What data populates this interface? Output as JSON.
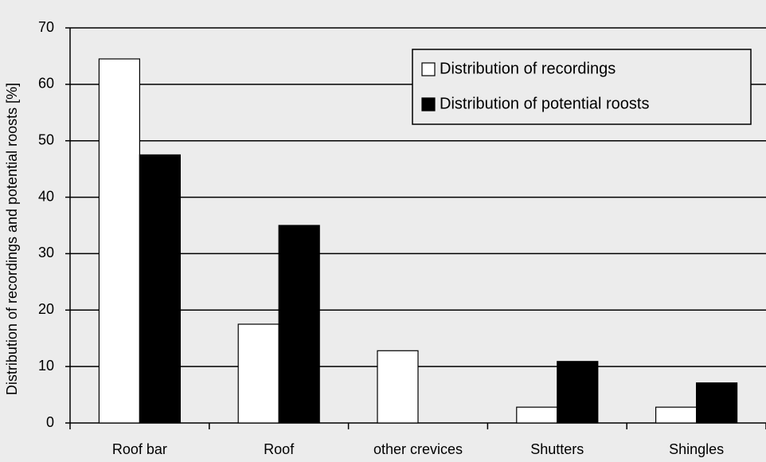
{
  "chart_data": {
    "type": "bar",
    "y_label": "Distribution of recordings and potential roosts [%]",
    "categories": [
      "Roof bar",
      "Roof",
      "other crevices",
      "Shutters",
      "Shingles"
    ],
    "series": [
      {
        "name": "Distribution of recordings",
        "color": "#ffffff",
        "values": [
          64.5,
          17.5,
          12.8,
          2.8,
          2.8
        ]
      },
      {
        "name": "Distribution of potential roosts",
        "color": "#000000",
        "values": [
          47.5,
          35,
          0,
          10.9,
          7.1
        ]
      }
    ],
    "ylim": [
      0,
      70
    ],
    "yticks": [
      0,
      10,
      20,
      30,
      40,
      50,
      60,
      70
    ],
    "grid": true,
    "legend": "upper right"
  }
}
